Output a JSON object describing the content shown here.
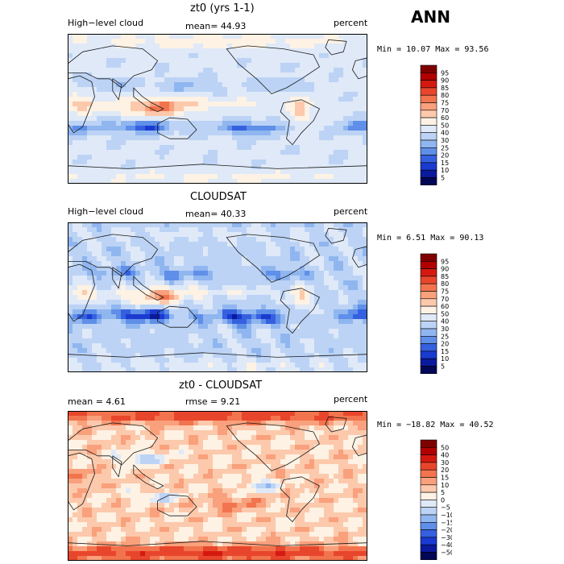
{
  "season": "ANN",
  "panels": [
    {
      "title": "zt0 (yrs 1-1)",
      "left_label": "High−level cloud",
      "center_label": "mean=  44.93",
      "right_label": "percent",
      "stats": "Min =  10.07 Max =  93.56",
      "colorbar_labels": [
        "95",
        "90",
        "85",
        "80",
        "75",
        "70",
        "60",
        "50",
        "40",
        "30",
        "25",
        "20",
        "15",
        "10",
        "5"
      ]
    },
    {
      "title": "CLOUDSAT",
      "left_label": "High−level cloud",
      "center_label": "mean=  40.33",
      "right_label": "percent",
      "stats": "Min =   6.51 Max =  90.13",
      "colorbar_labels": [
        "95",
        "90",
        "85",
        "80",
        "75",
        "70",
        "60",
        "50",
        "40",
        "30",
        "25",
        "20",
        "15",
        "10",
        "5"
      ]
    },
    {
      "title": "zt0 - CLOUDSAT",
      "left_label": "mean =   4.61",
      "center_label": "rmse =   9.21",
      "right_label": "percent",
      "stats": "Min = −18.82 Max =  40.52",
      "colorbar_labels": [
        "50",
        "40",
        "30",
        "20",
        "15",
        "10",
        "5",
        "0",
        "−5",
        "−10",
        "−15",
        "−20",
        "−30",
        "−40",
        "−50"
      ]
    }
  ],
  "colors": {
    "scale": [
      "#7f0000",
      "#b00000",
      "#d41a10",
      "#e8462c",
      "#f2744e",
      "#f9a07c",
      "#fcc9ac",
      "#fdf2e4",
      "#dfe9f8",
      "#bcd3f5",
      "#90b6f0",
      "#5f8fe8",
      "#3560df",
      "#1a3ad0",
      "#0a1a9c",
      "#020855"
    ],
    "coast": "#1a1a1a",
    "frame": "#000000"
  }
}
